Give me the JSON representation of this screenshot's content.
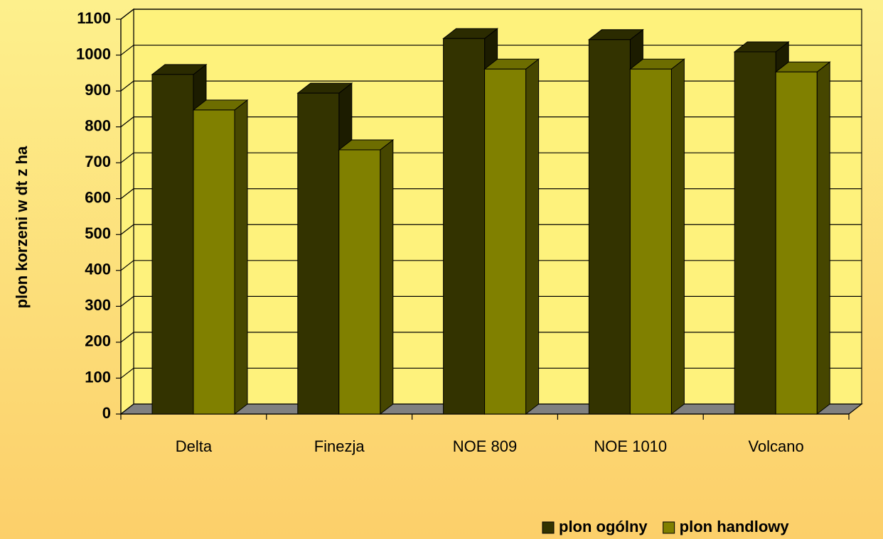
{
  "chart_data": {
    "type": "bar3d",
    "ylabel": "plon korzeni w dt z ha",
    "categories": [
      "Delta",
      "Finezja",
      "NOE 809",
      "NOE 1010",
      "Volcano"
    ],
    "series": [
      {
        "name": "plon ogólny",
        "color": "#333300",
        "values": [
          946,
          894,
          1046,
          1043,
          1009
        ]
      },
      {
        "name": "plon handlowy",
        "color": "#808000",
        "values": [
          847,
          736,
          961,
          961,
          953
        ]
      }
    ],
    "ylim": [
      0,
      1100
    ],
    "yticks": [
      0,
      100,
      200,
      300,
      400,
      500,
      600,
      700,
      800,
      900,
      1000,
      1100
    ],
    "grid": true,
    "legend": "lower right"
  }
}
